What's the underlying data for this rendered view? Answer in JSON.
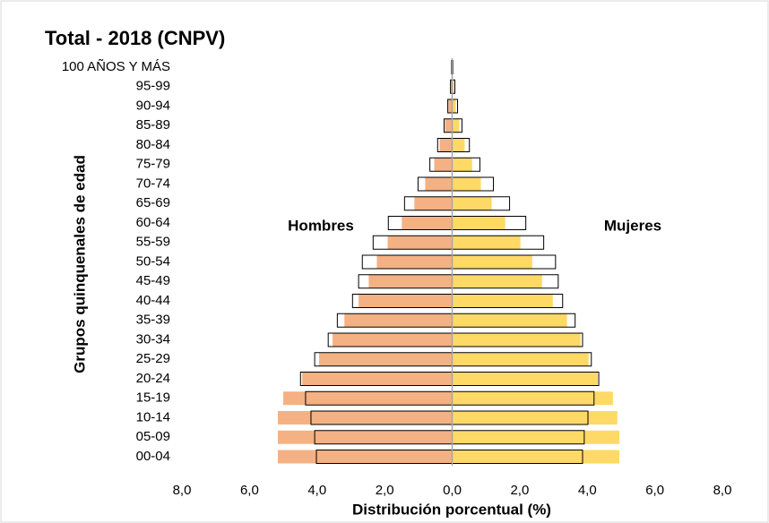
{
  "chart_data": {
    "type": "pyramid",
    "title": "Total - 2018 (CNPV)",
    "y_label": "Grupos quinquenales de edad",
    "x_label": "Distribución porcentual (%)",
    "annotations": [
      "Hombres",
      "Mujeres"
    ],
    "categories": [
      "00-04",
      "05-09",
      "10-14",
      "15-19",
      "20-24",
      "25-29",
      "30-34",
      "35-39",
      "40-44",
      "45-49",
      "50-54",
      "55-59",
      "60-64",
      "65-69",
      "70-74",
      "75-79",
      "80-84",
      "85-89",
      "90-94",
      "95-99",
      "100 AÑOS Y MÁS"
    ],
    "xlim": [
      -8,
      8
    ],
    "xticks": [
      {
        "value": -8,
        "label": "8,0"
      },
      {
        "value": -6,
        "label": "6,0"
      },
      {
        "value": -4,
        "label": "4,0"
      },
      {
        "value": -2,
        "label": "2,0"
      },
      {
        "value": 0,
        "label": "0,0"
      },
      {
        "value": 2,
        "label": "2,0"
      },
      {
        "value": 4,
        "label": "4,0"
      },
      {
        "value": 6,
        "label": "6,0"
      },
      {
        "value": 8,
        "label": "8,0"
      }
    ],
    "series": [
      {
        "name": "Hombres",
        "side": "left",
        "style": "filled",
        "color": "#f4b183",
        "values": [
          5.16,
          5.16,
          5.16,
          5.0,
          4.44,
          3.94,
          3.54,
          3.19,
          2.77,
          2.47,
          2.23,
          1.91,
          1.49,
          1.12,
          0.8,
          0.53,
          0.37,
          0.21,
          0.11,
          0.05,
          0.02
        ]
      },
      {
        "name": "Mujeres",
        "side": "right",
        "style": "filled",
        "color": "#ffd966",
        "values": [
          4.95,
          4.95,
          4.89,
          4.76,
          4.31,
          4.04,
          3.8,
          3.4,
          2.98,
          2.66,
          2.37,
          2.02,
          1.57,
          1.17,
          0.85,
          0.59,
          0.37,
          0.21,
          0.11,
          0.05,
          0.02
        ]
      },
      {
        "side": "left",
        "style": "outline",
        "color": "#000000",
        "values": [
          4.02,
          4.07,
          4.18,
          4.34,
          4.49,
          4.07,
          3.67,
          3.4,
          2.95,
          2.77,
          2.66,
          2.34,
          1.89,
          1.41,
          1.01,
          0.66,
          0.43,
          0.24,
          0.13,
          0.05,
          0.02
        ]
      },
      {
        "side": "right",
        "style": "outline",
        "color": "#000000",
        "values": [
          3.86,
          3.91,
          4.02,
          4.2,
          4.34,
          4.12,
          3.86,
          3.64,
          3.27,
          3.14,
          3.06,
          2.71,
          2.18,
          1.7,
          1.22,
          0.82,
          0.51,
          0.29,
          0.16,
          0.08,
          0.02
        ]
      }
    ]
  }
}
